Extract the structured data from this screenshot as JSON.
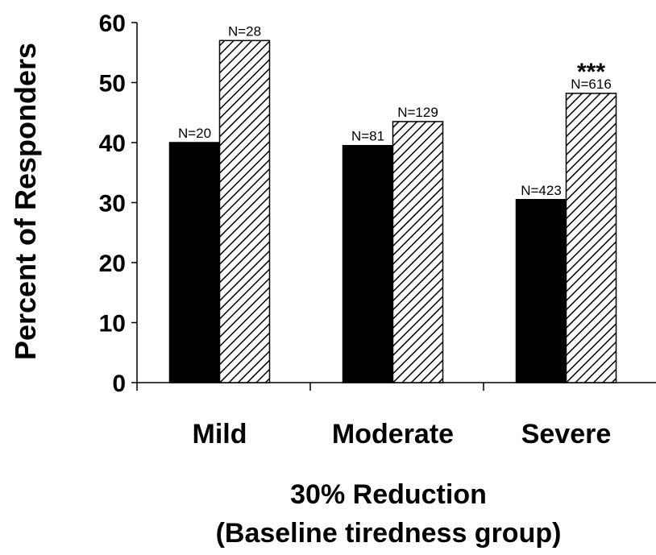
{
  "chart_data": {
    "type": "bar",
    "categories": [
      "Mild",
      "Moderate",
      "Severe"
    ],
    "series": [
      {
        "fill": "solid-black",
        "values": [
          40,
          39.5,
          30.5
        ],
        "n_labels": [
          "N=20",
          "N=81",
          "N=423"
        ]
      },
      {
        "fill": "diagonal-hatch",
        "values": [
          57,
          43.5,
          48.2
        ],
        "n_labels": [
          "N=28",
          "N=129",
          "N=616"
        ]
      }
    ],
    "annotations": [
      {
        "category": "Severe",
        "series": 1,
        "text": "***"
      }
    ],
    "ylabel": "Percent of Responders",
    "xlabel_line1": "30% Reduction",
    "xlabel_line2": "(Baseline tiredness group)",
    "ylim": [
      0,
      60
    ],
    "yticks": [
      "0",
      "10",
      "20",
      "30",
      "40",
      "50",
      "60"
    ],
    "grid": false,
    "legend": "none",
    "colors": {
      "bar": "#000000",
      "hatch": "#000000",
      "background": "#ffffff"
    }
  }
}
